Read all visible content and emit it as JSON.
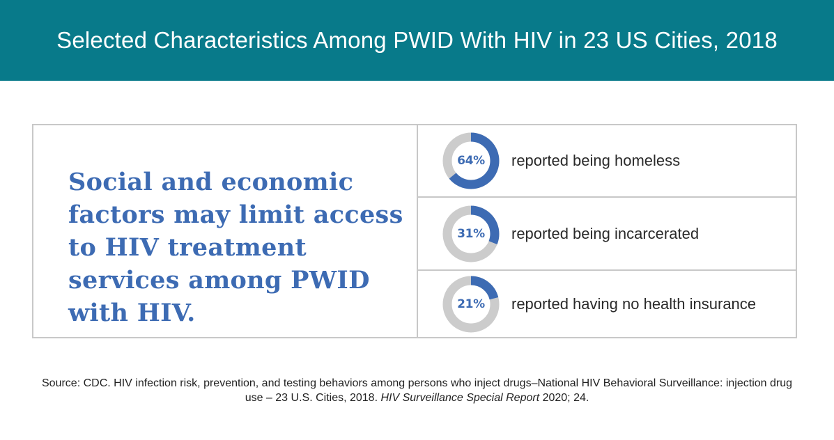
{
  "header": {
    "title": "Selected Characteristics Among PWID With HIV in 23 US Cities, 2018"
  },
  "headline": "Social and economic factors may limit access to HIV treatment services among PWID with HIV.",
  "colors": {
    "header_bg": "#087a8a",
    "accent_blue": "#3d6bb3",
    "ring_gray": "#cccccc",
    "border_gray": "#c8c8c8"
  },
  "chart_data": {
    "type": "pie",
    "style": "donut",
    "items": [
      {
        "value": 64,
        "label": "64%",
        "description": "reported being homeless"
      },
      {
        "value": 31,
        "label": "31%",
        "description": "reported being incarcerated"
      },
      {
        "value": 21,
        "label": "21%",
        "description": "reported having no health insurance"
      }
    ]
  },
  "source": {
    "prefix": "Source: CDC. HIV infection risk, prevention, and testing behaviors among persons who inject drugs–National HIV Behavioral Surveillance: injection drug use – 23 U.S. Cities, 2018. ",
    "italic": "HIV Surveillance Special Report",
    "suffix": " 2020; 24."
  }
}
